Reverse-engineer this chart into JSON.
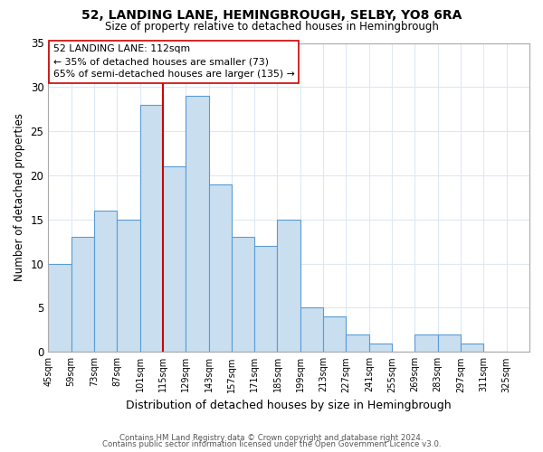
{
  "title": "52, LANDING LANE, HEMINGBROUGH, SELBY, YO8 6RA",
  "subtitle": "Size of property relative to detached houses in Hemingbrough",
  "xlabel": "Distribution of detached houses by size in Hemingbrough",
  "ylabel": "Number of detached properties",
  "bin_labels": [
    "45sqm",
    "59sqm",
    "73sqm",
    "87sqm",
    "101sqm",
    "115sqm",
    "129sqm",
    "143sqm",
    "157sqm",
    "171sqm",
    "185sqm",
    "199sqm",
    "213sqm",
    "227sqm",
    "241sqm",
    "255sqm",
    "269sqm",
    "283sqm",
    "297sqm",
    "311sqm",
    "325sqm"
  ],
  "bin_left_edges": [
    45,
    59,
    73,
    87,
    101,
    115,
    129,
    143,
    157,
    171,
    185,
    199,
    213,
    227,
    241,
    255,
    269,
    283,
    297,
    311
  ],
  "counts": [
    10,
    13,
    16,
    15,
    28,
    21,
    29,
    19,
    13,
    12,
    15,
    5,
    4,
    2,
    1,
    0,
    2,
    2,
    1,
    0
  ],
  "bar_color": "#c9dff0",
  "bar_edge_color": "#5b9bd5",
  "marker_x": 115,
  "marker_label": "52 LANDING LANE: 112sqm",
  "marker_color": "#cc0000",
  "annotation_line1": "← 35% of detached houses are smaller (73)",
  "annotation_line2": "65% of semi-detached houses are larger (135) →",
  "annotation_box_color": "#ffffff",
  "annotation_box_edge": "#cc0000",
  "ylim": [
    0,
    35
  ],
  "yticks": [
    0,
    5,
    10,
    15,
    20,
    25,
    30,
    35
  ],
  "xmin": 45,
  "xmax": 339,
  "footer_line1": "Contains HM Land Registry data © Crown copyright and database right 2024.",
  "footer_line2": "Contains public sector information licensed under the Open Government Licence v3.0.",
  "background_color": "#ffffff",
  "grid_color": "#dce9f5"
}
